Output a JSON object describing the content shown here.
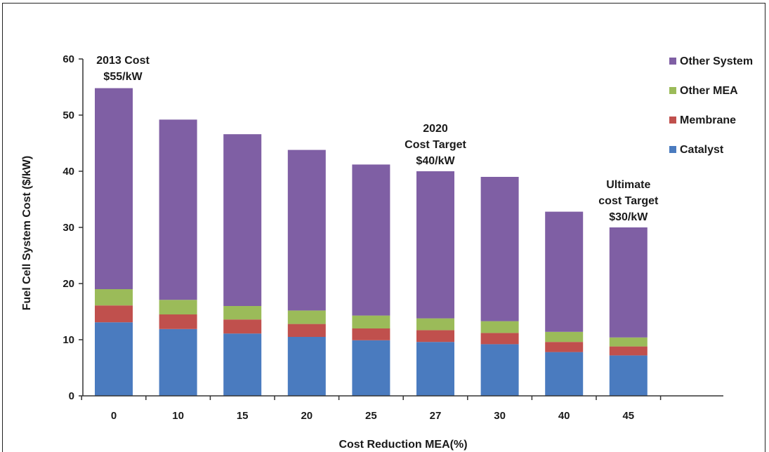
{
  "chart_data": {
    "type": "bar",
    "stacked": true,
    "xlabel": "Cost Reduction MEA(%)",
    "ylabel": "Fuel Cell System Cost ($/kW)",
    "ylim": [
      0,
      60
    ],
    "yticks": [
      0,
      10,
      20,
      30,
      40,
      50,
      60
    ],
    "grid": false,
    "legend_position": "top-right",
    "categories": [
      "0",
      "10",
      "15",
      "20",
      "25",
      "27",
      "30",
      "40",
      "45"
    ],
    "series": [
      {
        "name": "Catalyst",
        "color": "#4a7bbf",
        "values": [
          13.1,
          11.9,
          11.1,
          10.5,
          9.9,
          9.6,
          9.2,
          7.8,
          7.2
        ]
      },
      {
        "name": "Membrane",
        "color": "#c0504d",
        "values": [
          3.0,
          2.6,
          2.5,
          2.3,
          2.1,
          2.1,
          2.0,
          1.8,
          1.6
        ]
      },
      {
        "name": "Other MEA",
        "color": "#9bbb59",
        "values": [
          2.9,
          2.6,
          2.4,
          2.4,
          2.3,
          2.1,
          2.1,
          1.8,
          1.6
        ]
      },
      {
        "name": "Other System",
        "color": "#7f5fa4",
        "values": [
          35.8,
          32.1,
          30.6,
          28.6,
          26.9,
          26.2,
          25.7,
          21.4,
          19.6
        ]
      }
    ],
    "legend_order": [
      "Other System",
      "Other MEA",
      "Membrane",
      "Catalyst"
    ],
    "annotations": [
      {
        "lines": [
          "2013 Cost",
          "$55/kW"
        ],
        "category": "0",
        "value": 55
      },
      {
        "lines": [
          "2020",
          "Cost Target",
          "$40/kW"
        ],
        "category": "27",
        "value": 40
      },
      {
        "lines": [
          "Ultimate",
          "cost Target",
          "$30/kW"
        ],
        "category": "45",
        "value": 30
      }
    ]
  }
}
